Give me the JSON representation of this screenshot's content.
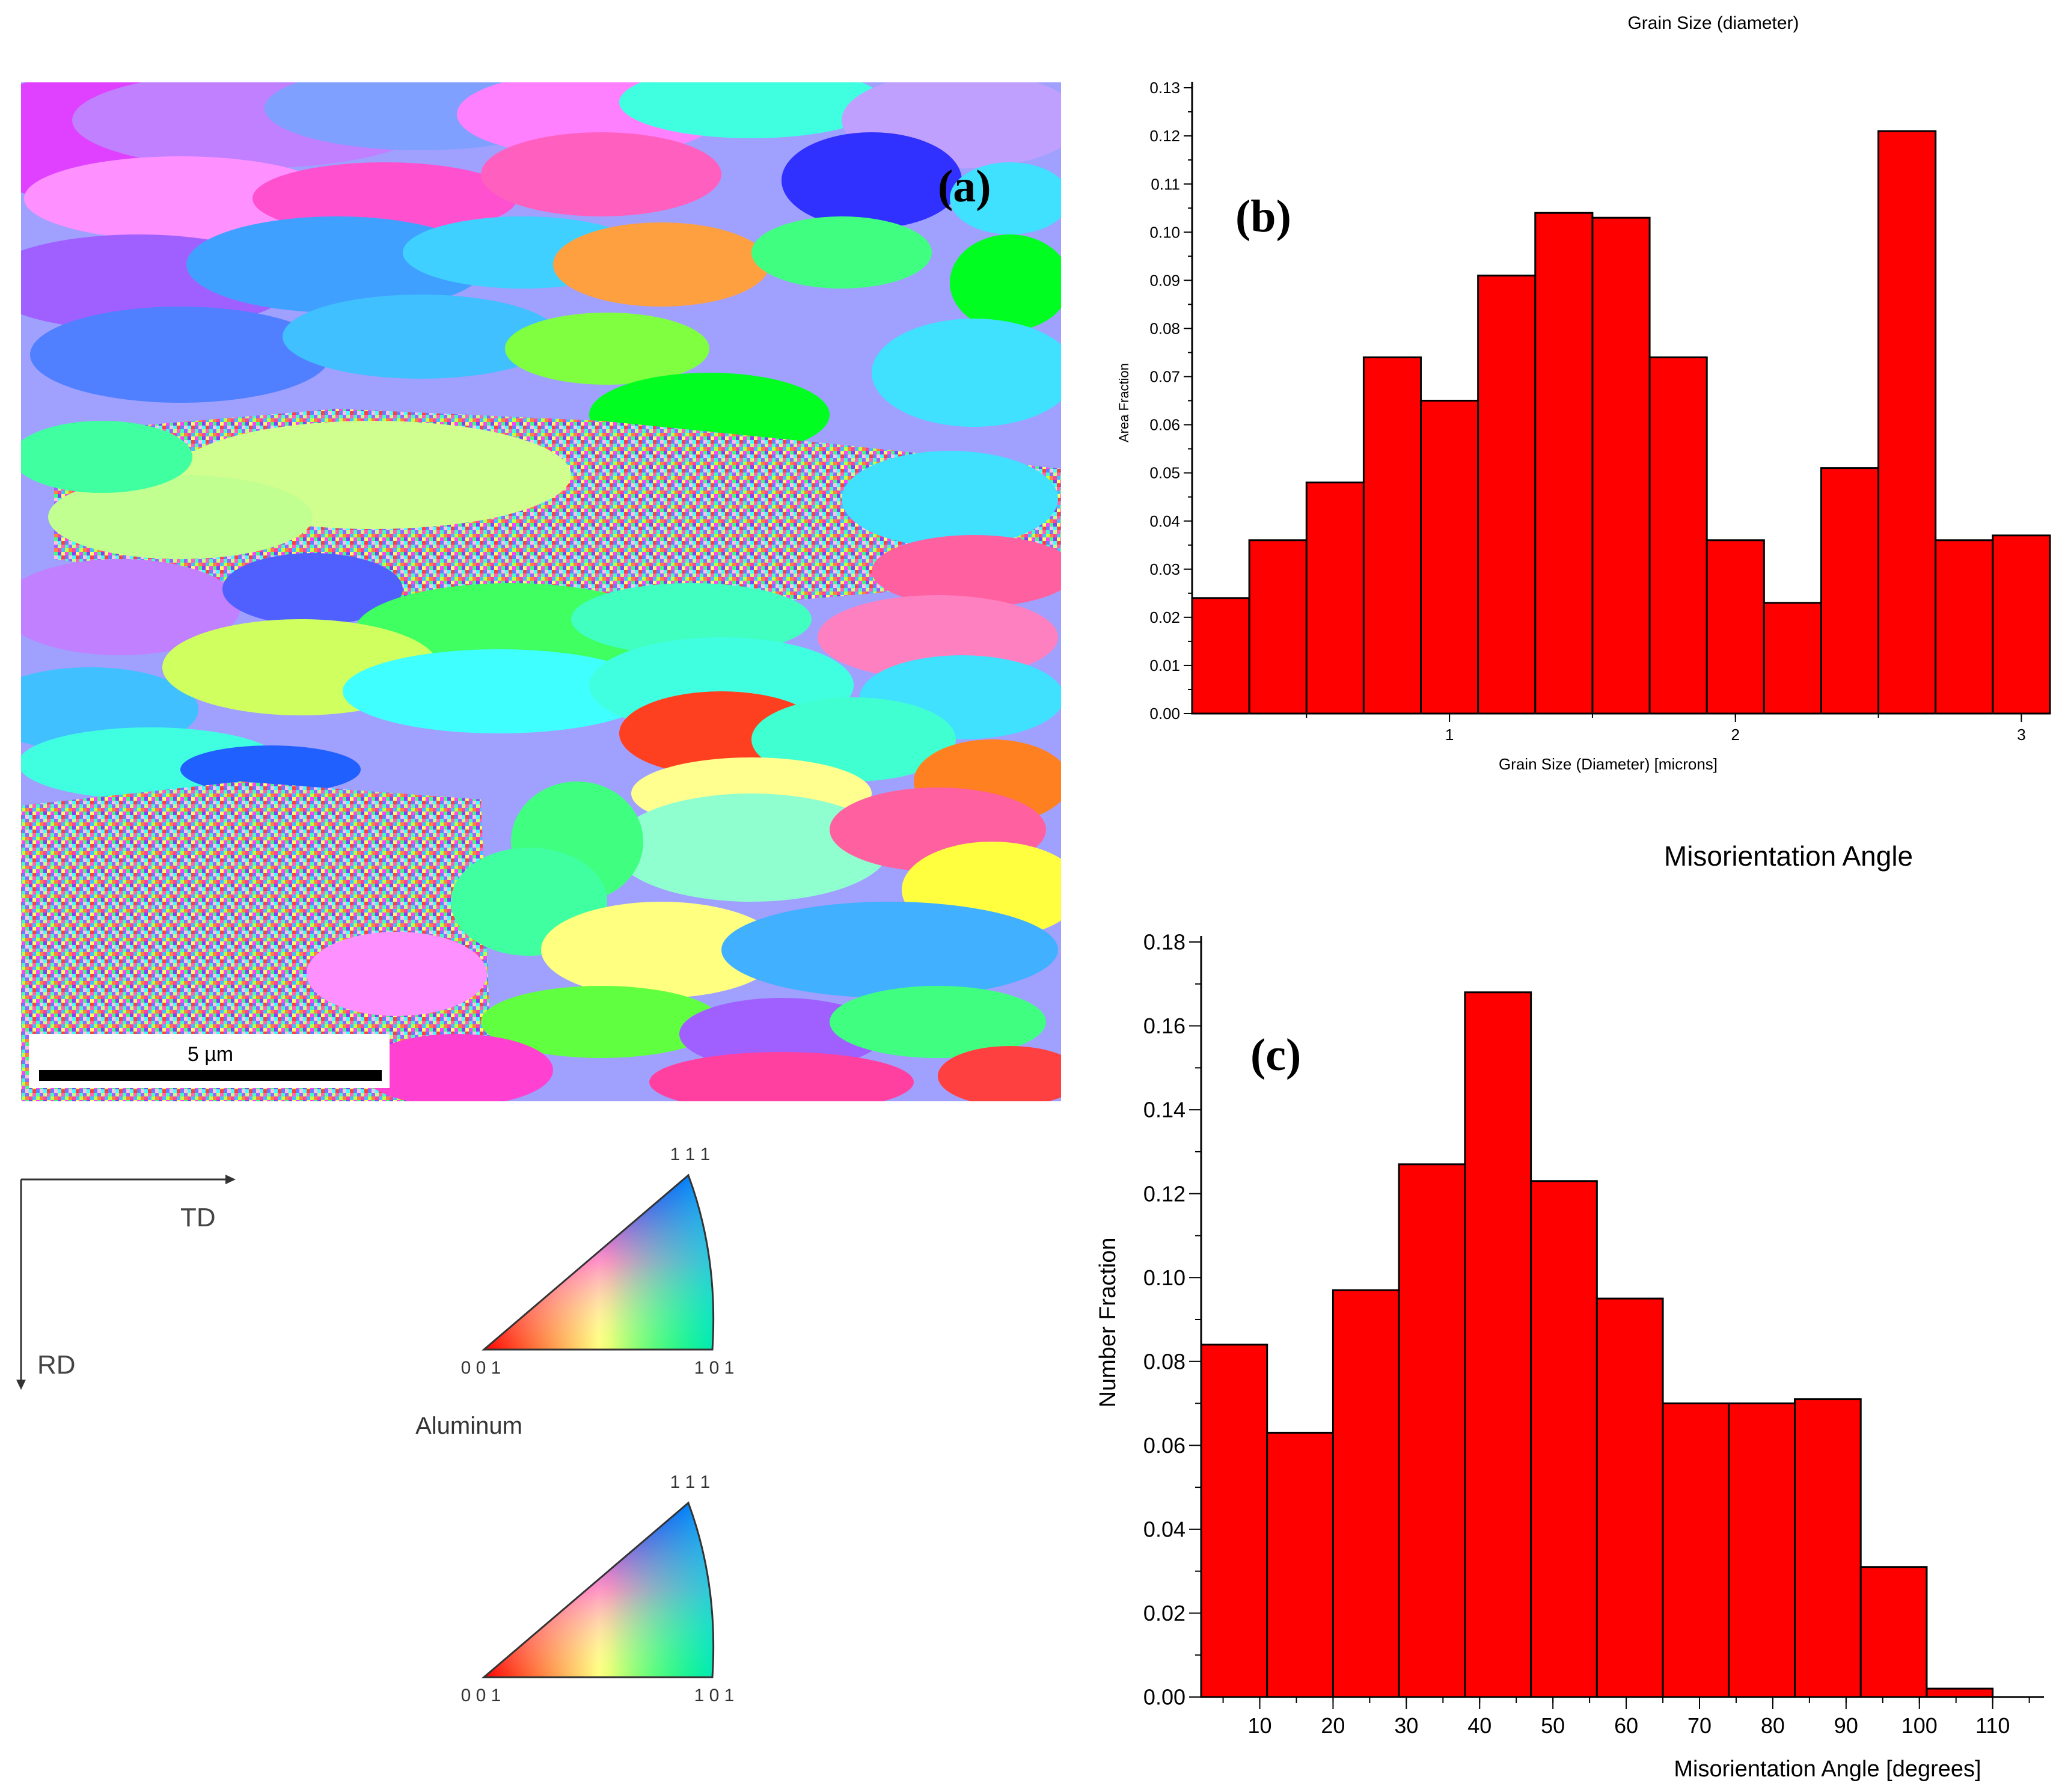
{
  "panel_a": {
    "label": "(a)",
    "scale_bar_text": "5 µm",
    "axes": {
      "horizontal": "TD",
      "vertical": "RD"
    },
    "ipf_legends": [
      {
        "corner_top": "1 1 1",
        "corner_left": "0 0 1",
        "corner_right": "1 0 1"
      },
      {
        "corner_top": "1 1 1",
        "corner_left": "0 0 1",
        "corner_right": "1 0 1"
      }
    ],
    "phase_label": "Aluminum"
  },
  "chart_data": [
    {
      "id": "b",
      "panel_label": "(b)",
      "type": "bar",
      "title": "Grain Size (diameter)",
      "xlabel": "Grain Size (Diameter) [microns]",
      "ylabel": "Area Fraction",
      "xlim": [
        0.1,
        3.1
      ],
      "ylim": [
        0,
        0.13
      ],
      "bin_width": 0.2,
      "bin_starts": [
        0.1,
        0.3,
        0.5,
        0.7,
        0.9,
        1.1,
        1.3,
        1.5,
        1.7,
        1.9,
        2.1,
        2.3,
        2.5,
        2.7,
        2.9
      ],
      "values": [
        0.024,
        0.036,
        0.048,
        0.074,
        0.065,
        0.091,
        0.104,
        0.103,
        0.074,
        0.036,
        0.023,
        0.051,
        0.121,
        0.036,
        0.037
      ],
      "xticks": [
        1,
        2,
        3
      ],
      "xtick_labels": [
        "1",
        "2",
        "3"
      ],
      "yticks": [
        0,
        0.01,
        0.02,
        0.03,
        0.04,
        0.05,
        0.06,
        0.07,
        0.08,
        0.09,
        0.1,
        0.11,
        0.12,
        0.13
      ],
      "ytick_labels": [
        "0.00",
        "0.01",
        "0.02",
        "0.03",
        "0.04",
        "0.05",
        "0.06",
        "0.07",
        "0.08",
        "0.09",
        "0.10",
        "0.11",
        "0.12",
        "0.13"
      ],
      "bar_color": "#ff0000"
    },
    {
      "id": "c",
      "panel_label": "(c)",
      "type": "bar",
      "title": "Misorientation Angle",
      "xlabel": "Misorientation Angle [degrees]",
      "ylabel": "Number Fraction",
      "xlim": [
        2,
        117
      ],
      "ylim": [
        0,
        0.18
      ],
      "bin_width": 9,
      "bin_starts": [
        2,
        11,
        20,
        29,
        38,
        47,
        56,
        65,
        74,
        83,
        92,
        101
      ],
      "values": [
        0.084,
        0.063,
        0.097,
        0.127,
        0.168,
        0.123,
        0.095,
        0.07,
        0.07,
        0.071,
        0.031,
        0.002
      ],
      "xticks": [
        10,
        20,
        30,
        40,
        50,
        60,
        70,
        80,
        90,
        100,
        110
      ],
      "xtick_labels": [
        "10",
        "20",
        "30",
        "40",
        "50",
        "60",
        "70",
        "80",
        "90",
        "100",
        "110"
      ],
      "yticks": [
        0,
        0.02,
        0.04,
        0.06,
        0.08,
        0.1,
        0.12,
        0.14,
        0.16,
        0.18
      ],
      "ytick_labels": [
        "0.00",
        "0.02",
        "0.04",
        "0.06",
        "0.08",
        "0.10",
        "0.12",
        "0.14",
        "0.16",
        "0.18"
      ],
      "bar_color": "#ff0000"
    }
  ]
}
